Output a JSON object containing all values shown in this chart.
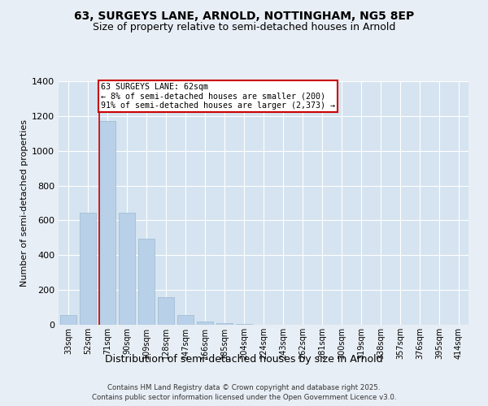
{
  "title1": "63, SURGEYS LANE, ARNOLD, NOTTINGHAM, NG5 8EP",
  "title2": "Size of property relative to semi-detached houses in Arnold",
  "xlabel": "Distribution of semi-detached houses by size in Arnold",
  "ylabel": "Number of semi-detached properties",
  "categories": [
    "33sqm",
    "52sqm",
    "71sqm",
    "90sqm",
    "109sqm",
    "128sqm",
    "147sqm",
    "166sqm",
    "185sqm",
    "204sqm",
    "224sqm",
    "243sqm",
    "262sqm",
    "281sqm",
    "300sqm",
    "319sqm",
    "338sqm",
    "357sqm",
    "376sqm",
    "395sqm",
    "414sqm"
  ],
  "values": [
    55,
    645,
    1170,
    645,
    495,
    160,
    55,
    20,
    10,
    5,
    0,
    0,
    0,
    0,
    0,
    0,
    0,
    0,
    0,
    0,
    0
  ],
  "bar_color": "#b8d0e8",
  "bar_edge_color": "#9ab8d0",
  "annotation_text": "63 SURGEYS LANE: 62sqm\n← 8% of semi-detached houses are smaller (200)\n91% of semi-detached houses are larger (2,373) →",
  "annotation_box_color": "#ffffff",
  "annotation_box_edge": "#cc0000",
  "line_color": "#cc0000",
  "ylim": [
    0,
    1400
  ],
  "yticks": [
    0,
    200,
    400,
    600,
    800,
    1000,
    1200,
    1400
  ],
  "bg_color": "#e8eef5",
  "plot_bg_color": "#d5e4f0",
  "grid_color": "#ffffff",
  "footer1": "Contains HM Land Registry data © Crown copyright and database right 2025.",
  "footer2": "Contains public sector information licensed under the Open Government Licence v3.0.",
  "title_fontsize": 10,
  "subtitle_fontsize": 9,
  "line_x_index": 1.58
}
